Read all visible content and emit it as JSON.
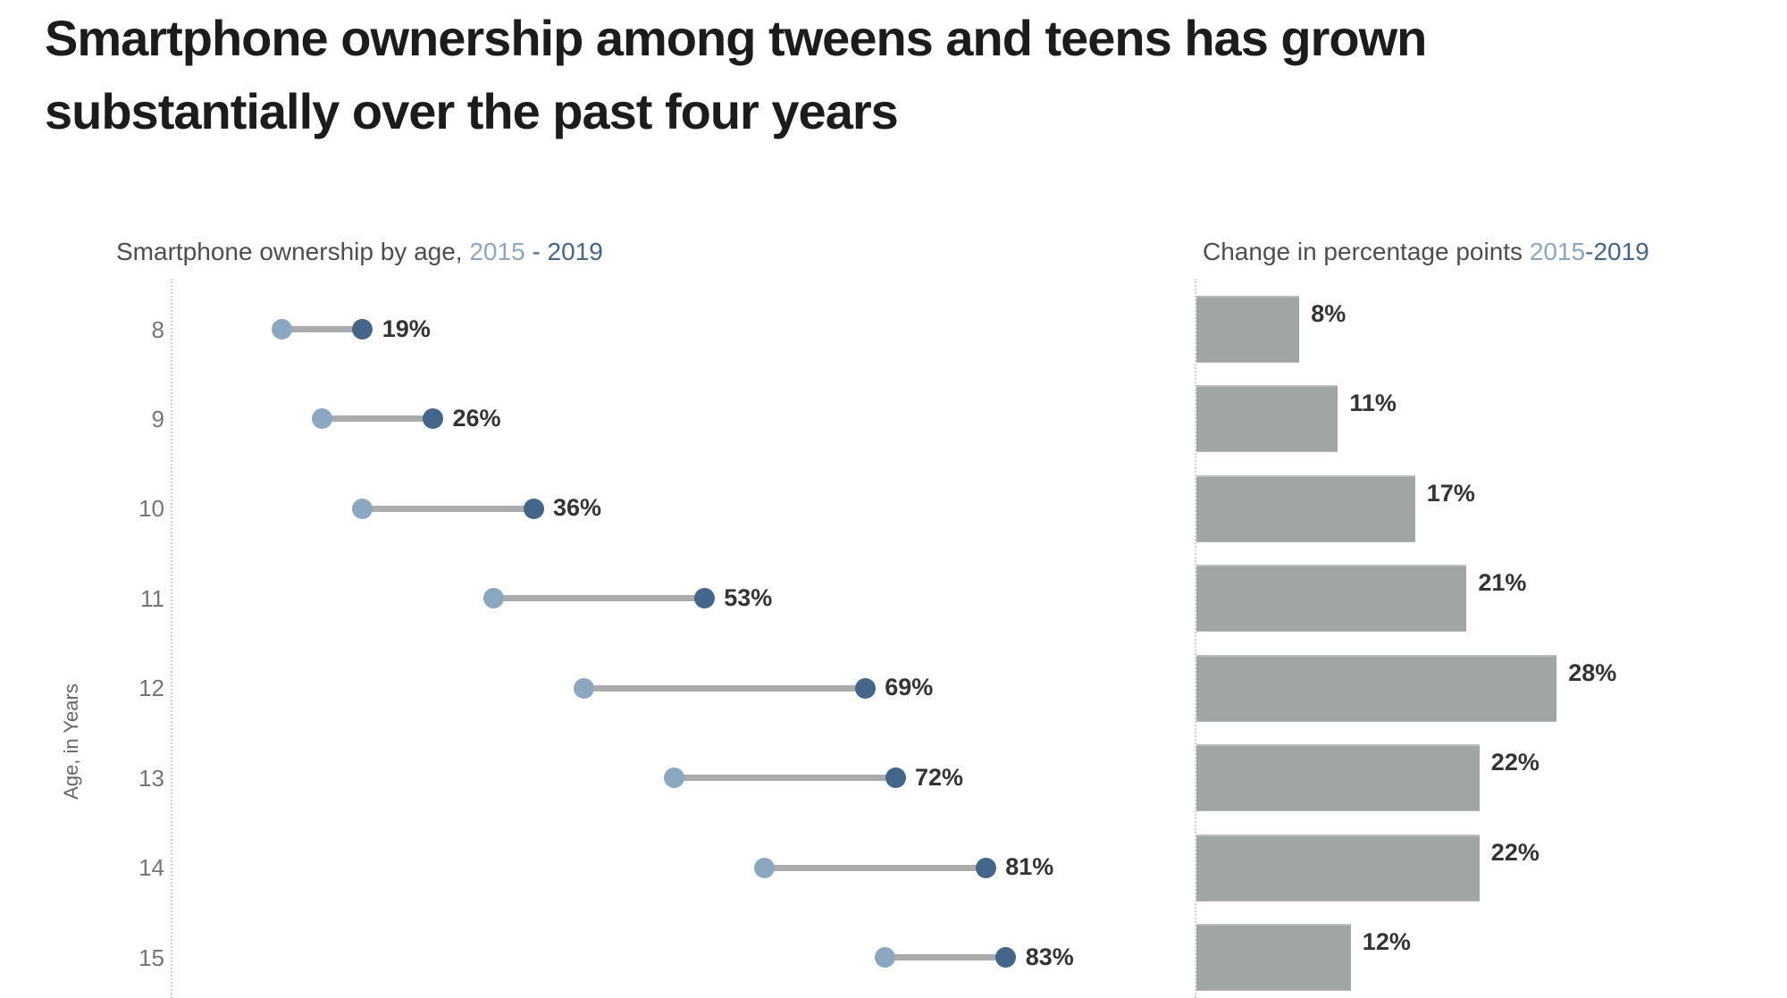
{
  "title": "Smartphone ownership among tweens and teens has grown substantially over the past four years",
  "left_chart": {
    "title_text": "Smartphone ownership by age, ",
    "year_start": "2015",
    "sep": " - ",
    "year_end": "2019",
    "ylabel": "Age, in Years"
  },
  "right_chart": {
    "title_text": "Change in percentage points ",
    "year_start": "2015",
    "sep": "-",
    "year_end": "2019"
  },
  "colors": {
    "title": "#1c1c1c",
    "subtitle": "#4e4e4e",
    "tick": "#767676",
    "axis_title": "#666666",
    "dot_2015": "#8ca8c0",
    "dot_2019": "#44668a",
    "connector": "#ababab",
    "bar": "#a1a5a5",
    "data_label": "#343434",
    "axis_dotted": "#d0d0d0"
  },
  "chart_data": [
    {
      "type": "scatter",
      "subtype": "dumbbell",
      "title": "Smartphone ownership by age, 2015 - 2019",
      "ylabel": "Age, in Years",
      "categories": [
        8,
        9,
        10,
        11,
        12,
        13,
        14,
        15
      ],
      "series": [
        {
          "name": "2015",
          "values": [
            11,
            15,
            19,
            32,
            41,
            50,
            59,
            71
          ]
        },
        {
          "name": "2019",
          "values": [
            19,
            26,
            36,
            53,
            69,
            72,
            81,
            83
          ]
        }
      ],
      "labels": [
        "19%",
        "26%",
        "36%",
        "53%",
        "69%",
        "72%",
        "81%",
        "83%"
      ],
      "xlim": [
        0,
        90
      ],
      "grid": false,
      "legend": "none"
    },
    {
      "type": "bar",
      "orientation": "horizontal",
      "title": "Change in percentage points 2015-2019",
      "categories": [
        8,
        9,
        10,
        11,
        12,
        13,
        14,
        15
      ],
      "values": [
        8,
        11,
        17,
        21,
        28,
        22,
        22,
        12
      ],
      "labels": [
        "8%",
        "11%",
        "17%",
        "21%",
        "28%",
        "22%",
        "22%",
        "12%"
      ],
      "xlim": [
        0,
        30
      ],
      "grid": false,
      "legend": "none"
    }
  ]
}
